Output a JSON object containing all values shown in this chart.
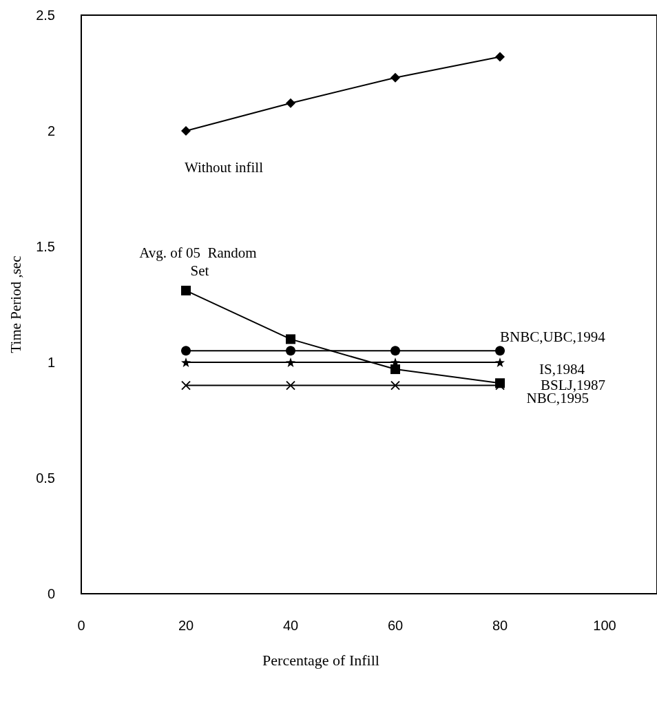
{
  "chart_data": {
    "type": "line",
    "xlabel": "Percentage of Infill",
    "ylabel": "Time Period ,sec",
    "x": [
      20,
      40,
      60,
      80
    ],
    "series": [
      {
        "name": "Without infill",
        "color": "#000000",
        "marker": "diamond",
        "values": [
          2.0,
          2.12,
          2.23,
          2.32
        ]
      },
      {
        "name": "Avg. of 05  Random Set",
        "color": "#000000",
        "marker": "square",
        "values": [
          1.31,
          1.1,
          0.97,
          0.91
        ]
      },
      {
        "name": "BNBC,UBC,1994",
        "color": "#000000",
        "marker": "circle",
        "values": [
          1.05,
          1.05,
          1.05,
          1.05
        ]
      },
      {
        "name": "IS,1984",
        "color": "#000000",
        "marker": "star",
        "values": [
          1.0,
          1.0,
          1.0,
          1.0
        ]
      },
      {
        "name": "NBC,1995",
        "color": "#000000",
        "marker": "cross",
        "values": [
          0.9,
          0.9,
          0.9,
          0.9
        ]
      }
    ],
    "annotations": [
      "BSLJ,1987"
    ],
    "xlim": [
      0,
      110
    ],
    "xticks": [
      0,
      20,
      40,
      60,
      80,
      100
    ],
    "ylim": [
      0,
      2.5
    ],
    "yticks": [
      0,
      0.5,
      1,
      1.5,
      2,
      2.5
    ],
    "grid": false,
    "legend": false,
    "line_style": "solid"
  }
}
